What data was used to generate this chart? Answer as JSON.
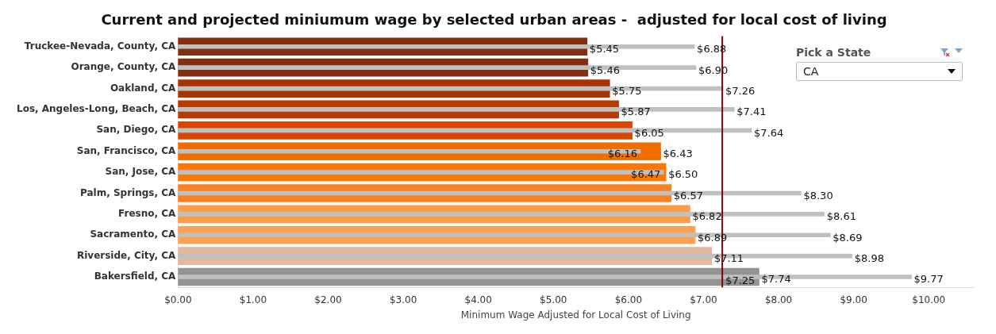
{
  "chart_data": {
    "type": "bar",
    "orientation": "horizontal",
    "title": "Current and projected miniumum wage by selected urban areas -  adjusted for local cost of living",
    "xlabel": "Minimum Wage Adjusted for Local Cost of Living",
    "categories": [
      "Truckee-Nevada, County, CA",
      "Orange, County, CA",
      "Oakland, CA",
      "Los, Angeles-Long, Beach, CA",
      "San, Diego, CA",
      "San, Francisco, CA",
      "San, Jose, CA",
      "Palm, Springs, CA",
      "Fresno, CA",
      "Sacramento, CA",
      "Riverside, City, CA",
      "Bakersfield, CA"
    ],
    "series": [
      {
        "colors": [
          "#80300e",
          "#80300e",
          "#a63300",
          "#b83a00",
          "#d94800",
          "#f26d00",
          "#f87808",
          "#f98220",
          "#fd9d4a",
          "#fda050",
          "#e4b89a",
          "#939393"
        ],
        "values": [
          5.45,
          5.46,
          5.75,
          5.87,
          6.05,
          6.43,
          6.5,
          6.57,
          6.82,
          6.89,
          7.11,
          7.74
        ],
        "value_labels": [
          "$5.45",
          "$5.46",
          "$5.75",
          "$5.87",
          "$6.05",
          "$6.43",
          "$6.50",
          "$6.57",
          "$6.82",
          "$6.89",
          "$7.11",
          "$7.74"
        ]
      },
      {
        "color": "#c0c0c0",
        "values": [
          6.88,
          6.9,
          7.26,
          7.41,
          7.64,
          6.16,
          6.47,
          8.3,
          8.61,
          8.69,
          8.98,
          9.77
        ],
        "value_labels": [
          "$6.88",
          "$6.90",
          "$7.26",
          "$7.41",
          "$7.64",
          "$6.16",
          "$6.47",
          "$8.30",
          "$8.61",
          "$8.69",
          "$8.98",
          "$9.77"
        ]
      }
    ],
    "xlim": [
      0,
      10.6
    ],
    "xticks": [
      {
        "value": 0,
        "label": "$0.00"
      },
      {
        "value": 1,
        "label": "$1.00"
      },
      {
        "value": 2,
        "label": "$2.00"
      },
      {
        "value": 3,
        "label": "$3.00"
      },
      {
        "value": 4,
        "label": "$4.00"
      },
      {
        "value": 5,
        "label": "$5.00"
      },
      {
        "value": 6,
        "label": "$6.00"
      },
      {
        "value": 7,
        "label": "$7.00"
      },
      {
        "value": 8,
        "label": "$8.00"
      },
      {
        "value": 9,
        "label": "$9.00"
      },
      {
        "value": 10,
        "label": "$10.00"
      }
    ],
    "ref_lines": [
      {
        "axis": "x",
        "value": 7.25,
        "label": "$7.25",
        "color": "#8b0000"
      }
    ],
    "annotations": [
      "Pick a State",
      "CA"
    ],
    "grid": false,
    "legend": false
  }
}
